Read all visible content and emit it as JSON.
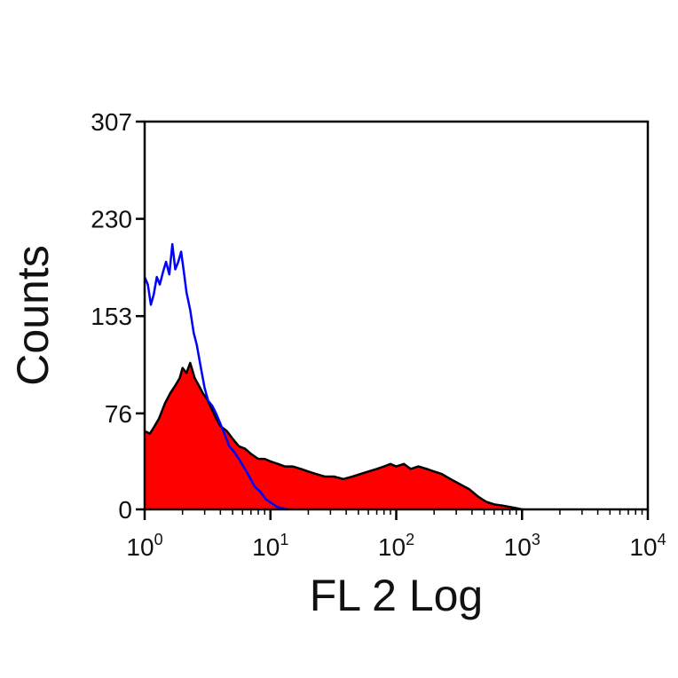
{
  "chart_data": {
    "type": "area",
    "xlabel": "FL 2 Log",
    "ylabel": "Counts",
    "x_scale": "log",
    "xlim": [
      1,
      10000
    ],
    "ylim": [
      0,
      307
    ],
    "x_ticks": [
      {
        "base": "10",
        "exp": "0",
        "value": 1
      },
      {
        "base": "10",
        "exp": "1",
        "value": 10
      },
      {
        "base": "10",
        "exp": "2",
        "value": 100
      },
      {
        "base": "10",
        "exp": "3",
        "value": 1000
      },
      {
        "base": "10",
        "exp": "4",
        "value": 10000
      }
    ],
    "y_ticks": [
      "0",
      "76",
      "153",
      "230",
      "307"
    ],
    "grid": false,
    "series": [
      {
        "style": "filled",
        "fill_color": "#ff0000",
        "line_color": "#000000",
        "x": [
          1.0,
          1.1,
          1.2,
          1.3,
          1.45,
          1.6,
          1.75,
          1.9,
          2.0,
          2.15,
          2.3,
          2.5,
          2.7,
          2.9,
          3.1,
          3.4,
          3.7,
          4.0,
          4.5,
          5.0,
          5.6,
          6.3,
          7.0,
          8.0,
          9.0,
          10.0,
          11.5,
          13.0,
          15.0,
          17.5,
          20.0,
          23.0,
          27.0,
          32.0,
          38.0,
          45.0,
          52.0,
          60.0,
          70.0,
          80.0,
          90.0,
          100.0,
          115.0,
          130.0,
          150.0,
          175.0,
          200.0,
          230.0,
          270.0,
          320.0,
          380.0,
          450.0,
          520.0,
          600.0,
          700.0,
          800.0,
          900.0,
          1000.0
        ],
        "y": [
          62,
          60,
          66,
          72,
          84,
          92,
          98,
          104,
          112,
          108,
          116,
          104,
          98,
          92,
          88,
          80,
          72,
          66,
          62,
          56,
          50,
          48,
          44,
          40,
          40,
          38,
          36,
          34,
          34,
          32,
          30,
          28,
          26,
          26,
          24,
          26,
          28,
          30,
          32,
          34,
          36,
          34,
          36,
          32,
          34,
          32,
          30,
          28,
          24,
          20,
          16,
          10,
          6,
          4,
          3,
          2,
          1,
          0
        ]
      },
      {
        "style": "line",
        "line_color": "#0000ff",
        "x": [
          1.0,
          1.06,
          1.12,
          1.18,
          1.25,
          1.32,
          1.4,
          1.48,
          1.57,
          1.66,
          1.75,
          1.85,
          1.95,
          2.05,
          2.15,
          2.3,
          2.45,
          2.6,
          2.8,
          3.0,
          3.2,
          3.45,
          3.7,
          4.0,
          4.3,
          4.7,
          5.1,
          5.6,
          6.1,
          6.8,
          7.5,
          8.3,
          9.2,
          10.2,
          11.3,
          12.5,
          13.5
        ],
        "y": [
          184,
          178,
          162,
          170,
          184,
          178,
          188,
          196,
          186,
          210,
          190,
          196,
          204,
          188,
          172,
          158,
          140,
          130,
          112,
          96,
          86,
          82,
          76,
          68,
          60,
          50,
          46,
          40,
          34,
          26,
          18,
          14,
          8,
          5,
          2,
          1,
          0
        ]
      }
    ]
  }
}
